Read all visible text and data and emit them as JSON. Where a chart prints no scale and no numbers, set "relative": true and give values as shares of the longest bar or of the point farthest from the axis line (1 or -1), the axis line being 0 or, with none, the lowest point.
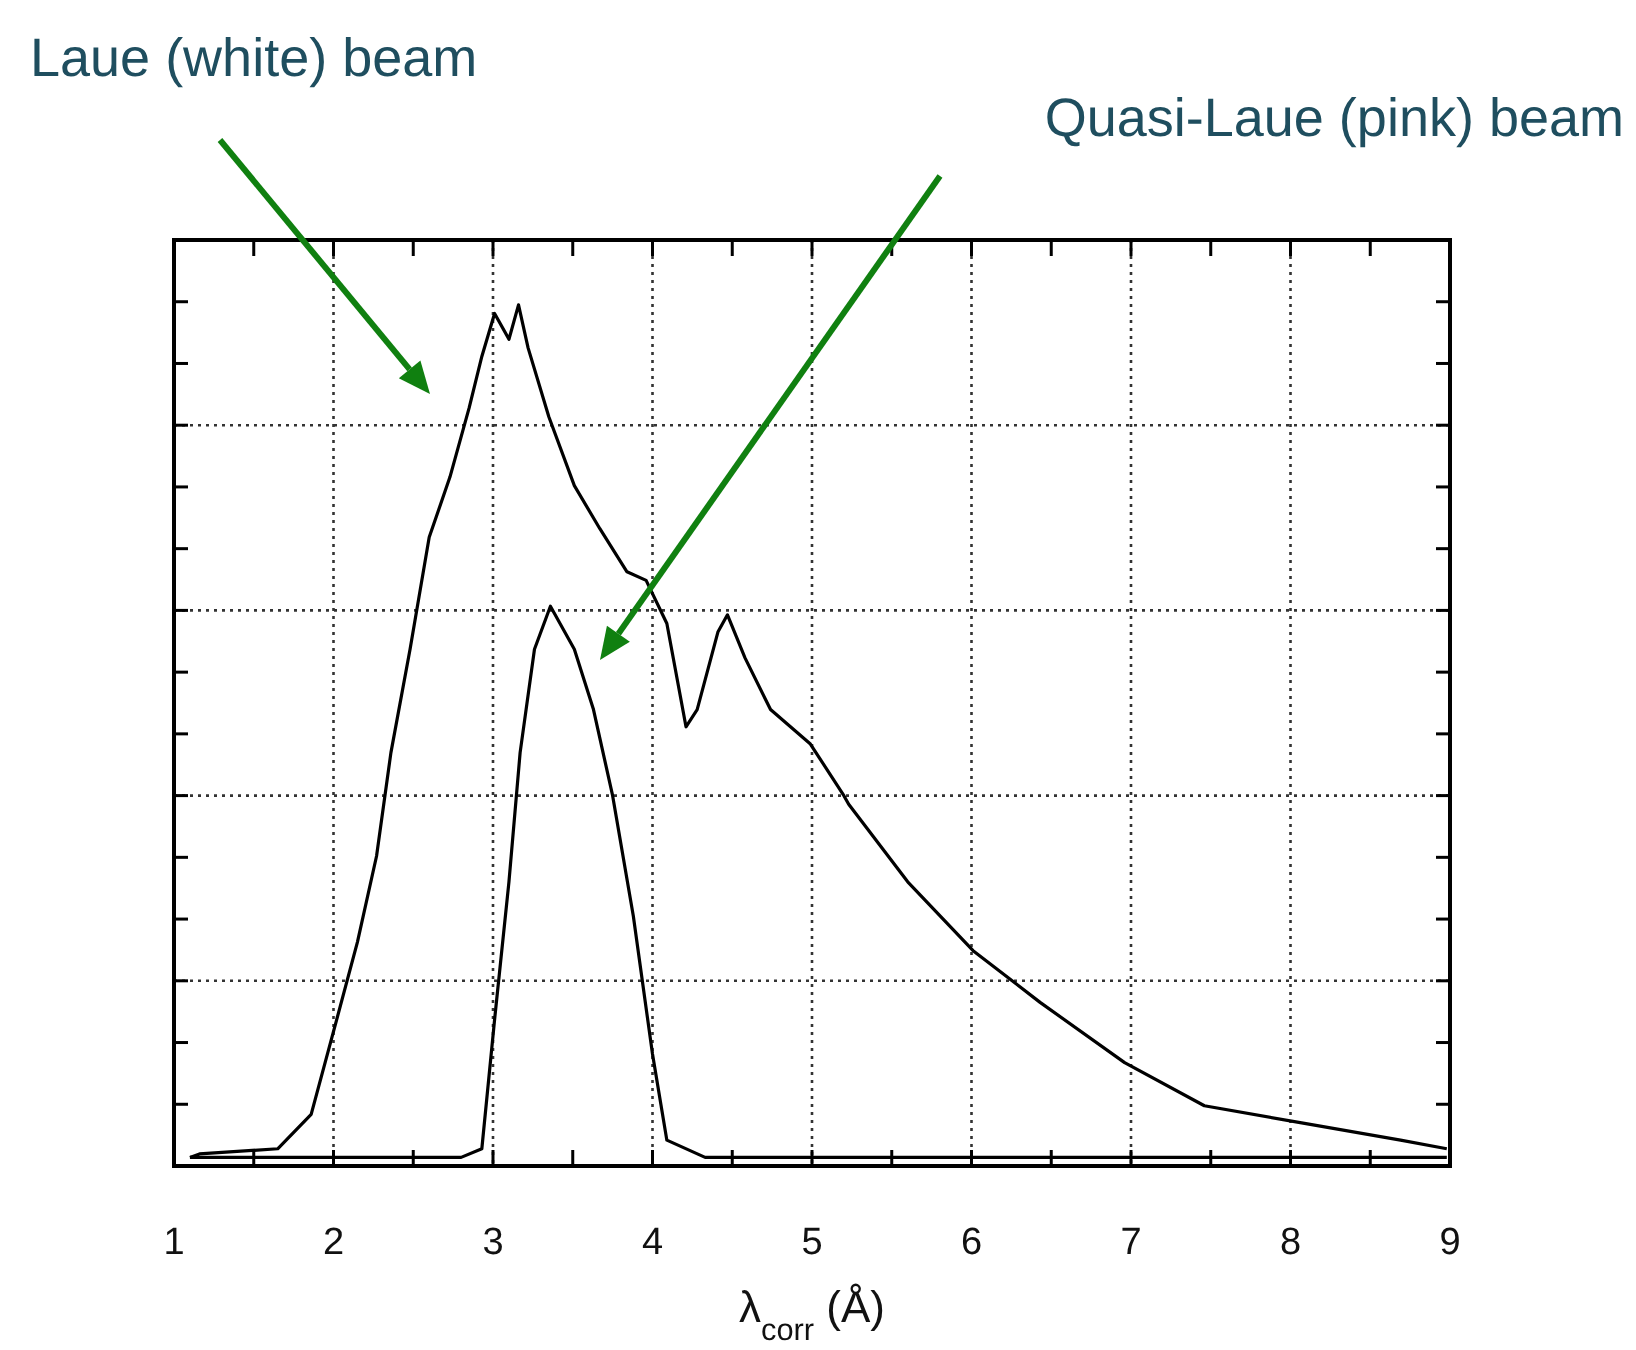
{
  "chart_data": {
    "type": "line",
    "relative": true,
    "xlabel": "λ$_{corr}$ (Å)",
    "xlim": [
      1,
      9
    ],
    "xticks": [
      1,
      2,
      3,
      4,
      5,
      6,
      7,
      8,
      9
    ],
    "grid": true,
    "line_style": "solid",
    "marker": "none",
    "annotations": [
      "Laue (white) beam",
      "Quasi-Laue (pink) beam"
    ],
    "series": [
      {
        "color": "#000000",
        "x": [
          1.1,
          1.16,
          1.65,
          1.86,
          2.02,
          2.15,
          2.27,
          2.36,
          2.48,
          2.6,
          2.73,
          2.85,
          2.93,
          3.01,
          3.1,
          3.16,
          3.22,
          3.35,
          3.51,
          3.67,
          3.84,
          3.96,
          4.09,
          4.21,
          4.28,
          4.41,
          4.47,
          4.58,
          4.74,
          4.99,
          5.2,
          5.23,
          5.6,
          6.01,
          6.43,
          6.96,
          7.46,
          8.07,
          8.69,
          8.98
        ],
        "values": [
          0.01,
          0.014,
          0.02,
          0.06,
          0.17,
          0.26,
          0.36,
          0.48,
          0.6,
          0.73,
          0.8,
          0.88,
          0.94,
          0.99,
          0.96,
          1.0,
          0.95,
          0.87,
          0.79,
          0.74,
          0.69,
          0.68,
          0.63,
          0.51,
          0.53,
          0.62,
          0.64,
          0.59,
          0.53,
          0.49,
          0.43,
          0.42,
          0.33,
          0.25,
          0.19,
          0.12,
          0.07,
          0.05,
          0.03,
          0.02
        ]
      },
      {
        "color": "#000000",
        "x": [
          1.1,
          2.0,
          2.8,
          2.93,
          3.01,
          3.1,
          3.17,
          3.26,
          3.36,
          3.51,
          3.63,
          3.75,
          3.88,
          4.0,
          4.09,
          4.33,
          5.0,
          6.0,
          7.0,
          8.0,
          8.98
        ],
        "values": [
          0.01,
          0.01,
          0.01,
          0.02,
          0.17,
          0.33,
          0.48,
          0.6,
          0.65,
          0.6,
          0.53,
          0.43,
          0.29,
          0.13,
          0.03,
          0.01,
          0.01,
          0.01,
          0.01,
          0.01,
          0.01
        ]
      }
    ]
  }
}
